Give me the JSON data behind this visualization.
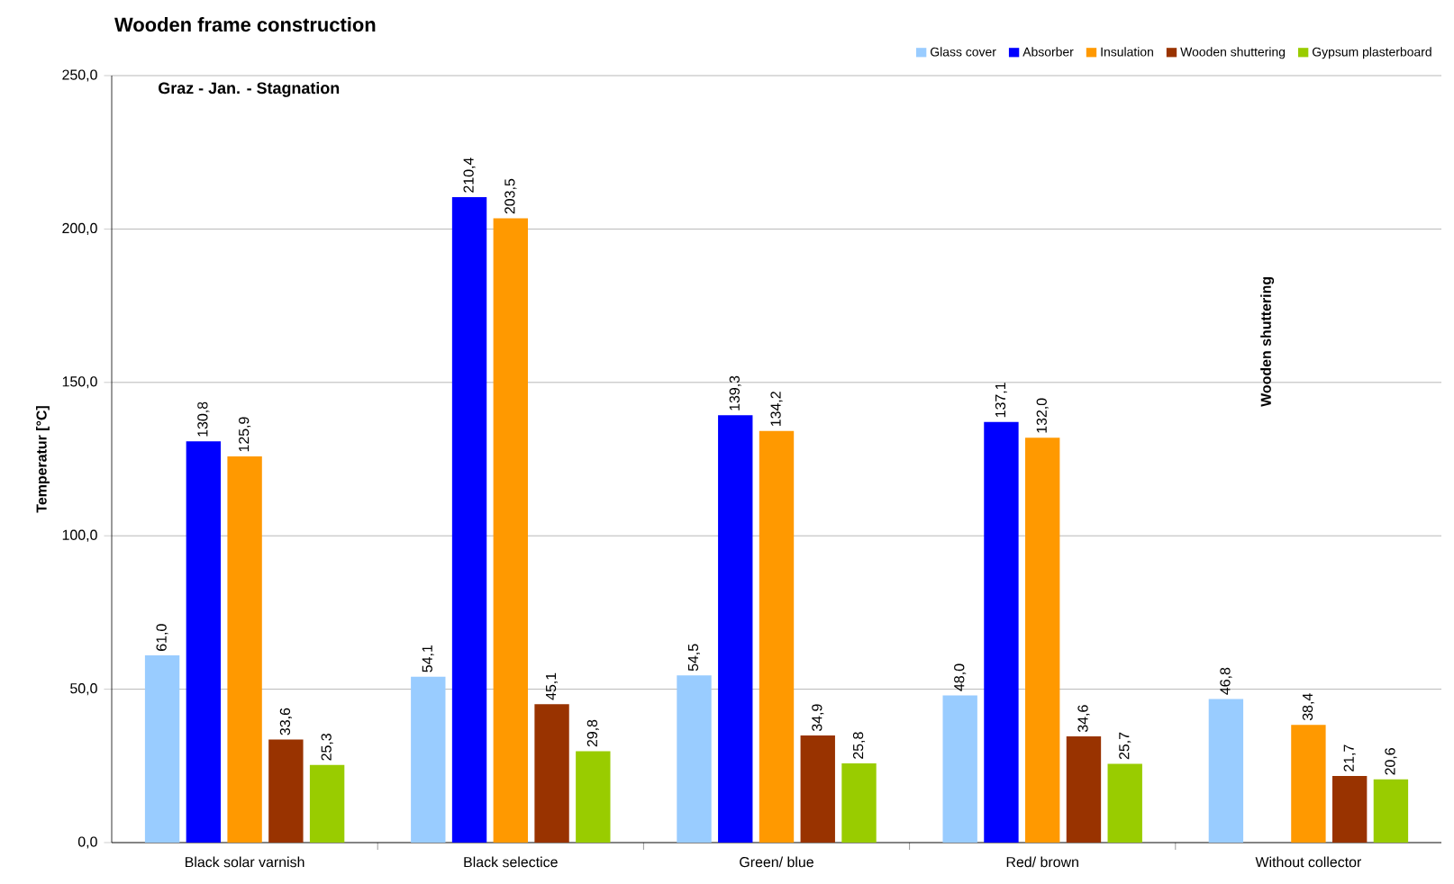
{
  "chart_data": {
    "type": "bar",
    "title": "Wooden frame construction",
    "subtitle": "Graz - Jan. - Stagnation",
    "ylabel": "Temperatur [°C]",
    "categories": [
      "Black solar varnish",
      "Black selectice",
      "Green/ blue",
      "Red/ brown",
      "Without collector"
    ],
    "series": [
      {
        "name": "Glass cover",
        "color": "#99ccff",
        "values": [
          61.0,
          54.1,
          54.5,
          48.0,
          46.8
        ],
        "value_labels": [
          "61,0",
          "54,1",
          "54,5",
          "48,0",
          "46,8"
        ]
      },
      {
        "name": "Absorber",
        "color": "#0000ff",
        "values": [
          130.8,
          210.4,
          139.3,
          137.1,
          null
        ],
        "value_labels": [
          "130,8",
          "210,4",
          "139,3",
          "137,1",
          null
        ]
      },
      {
        "name": "Insulation",
        "color": "#ff9900",
        "values": [
          125.9,
          203.5,
          134.2,
          132.0,
          38.4
        ],
        "value_labels": [
          "125,9",
          "203,5",
          "134,2",
          "132,0",
          "38,4"
        ]
      },
      {
        "name": "Wooden shuttering",
        "color": "#993300",
        "values": [
          33.6,
          45.1,
          34.9,
          34.6,
          21.7
        ],
        "value_labels": [
          "33,6",
          "45,1",
          "34,9",
          "34,6",
          "21,7"
        ]
      },
      {
        "name": "Gypsum plasterboard",
        "color": "#99cc00",
        "values": [
          25.3,
          29.8,
          25.8,
          25.7,
          20.6
        ],
        "value_labels": [
          "25,3",
          "29,8",
          "25,8",
          "25,7",
          "20,6"
        ]
      }
    ],
    "annotations": [
      "Wooden shuttering"
    ],
    "ylim": [
      0,
      250
    ],
    "yticks": [
      {
        "value": 0,
        "label": "0,0"
      },
      {
        "value": 50,
        "label": "50,0"
      },
      {
        "value": 100,
        "label": "100,0"
      },
      {
        "value": 150,
        "label": "150,0"
      },
      {
        "value": 200,
        "label": "200,0"
      },
      {
        "value": 250,
        "label": "250,0"
      }
    ],
    "grid": "y",
    "legend": "top right"
  }
}
